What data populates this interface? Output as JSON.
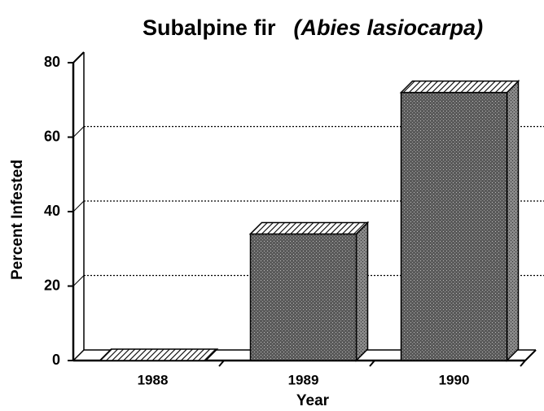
{
  "chart_data": {
    "type": "bar3d",
    "title": "Subalpine fir",
    "title_species": "(Abies lasiocarpa)",
    "x_label": "Year",
    "y_label": "Percent Infested",
    "categories": [
      "1988",
      "1989",
      "1990"
    ],
    "values": [
      0,
      34,
      72
    ],
    "color": "#6a6a6a",
    "ylim": [
      0,
      80
    ],
    "yticks": [
      0,
      20,
      40,
      60,
      80
    ],
    "grid": true
  }
}
